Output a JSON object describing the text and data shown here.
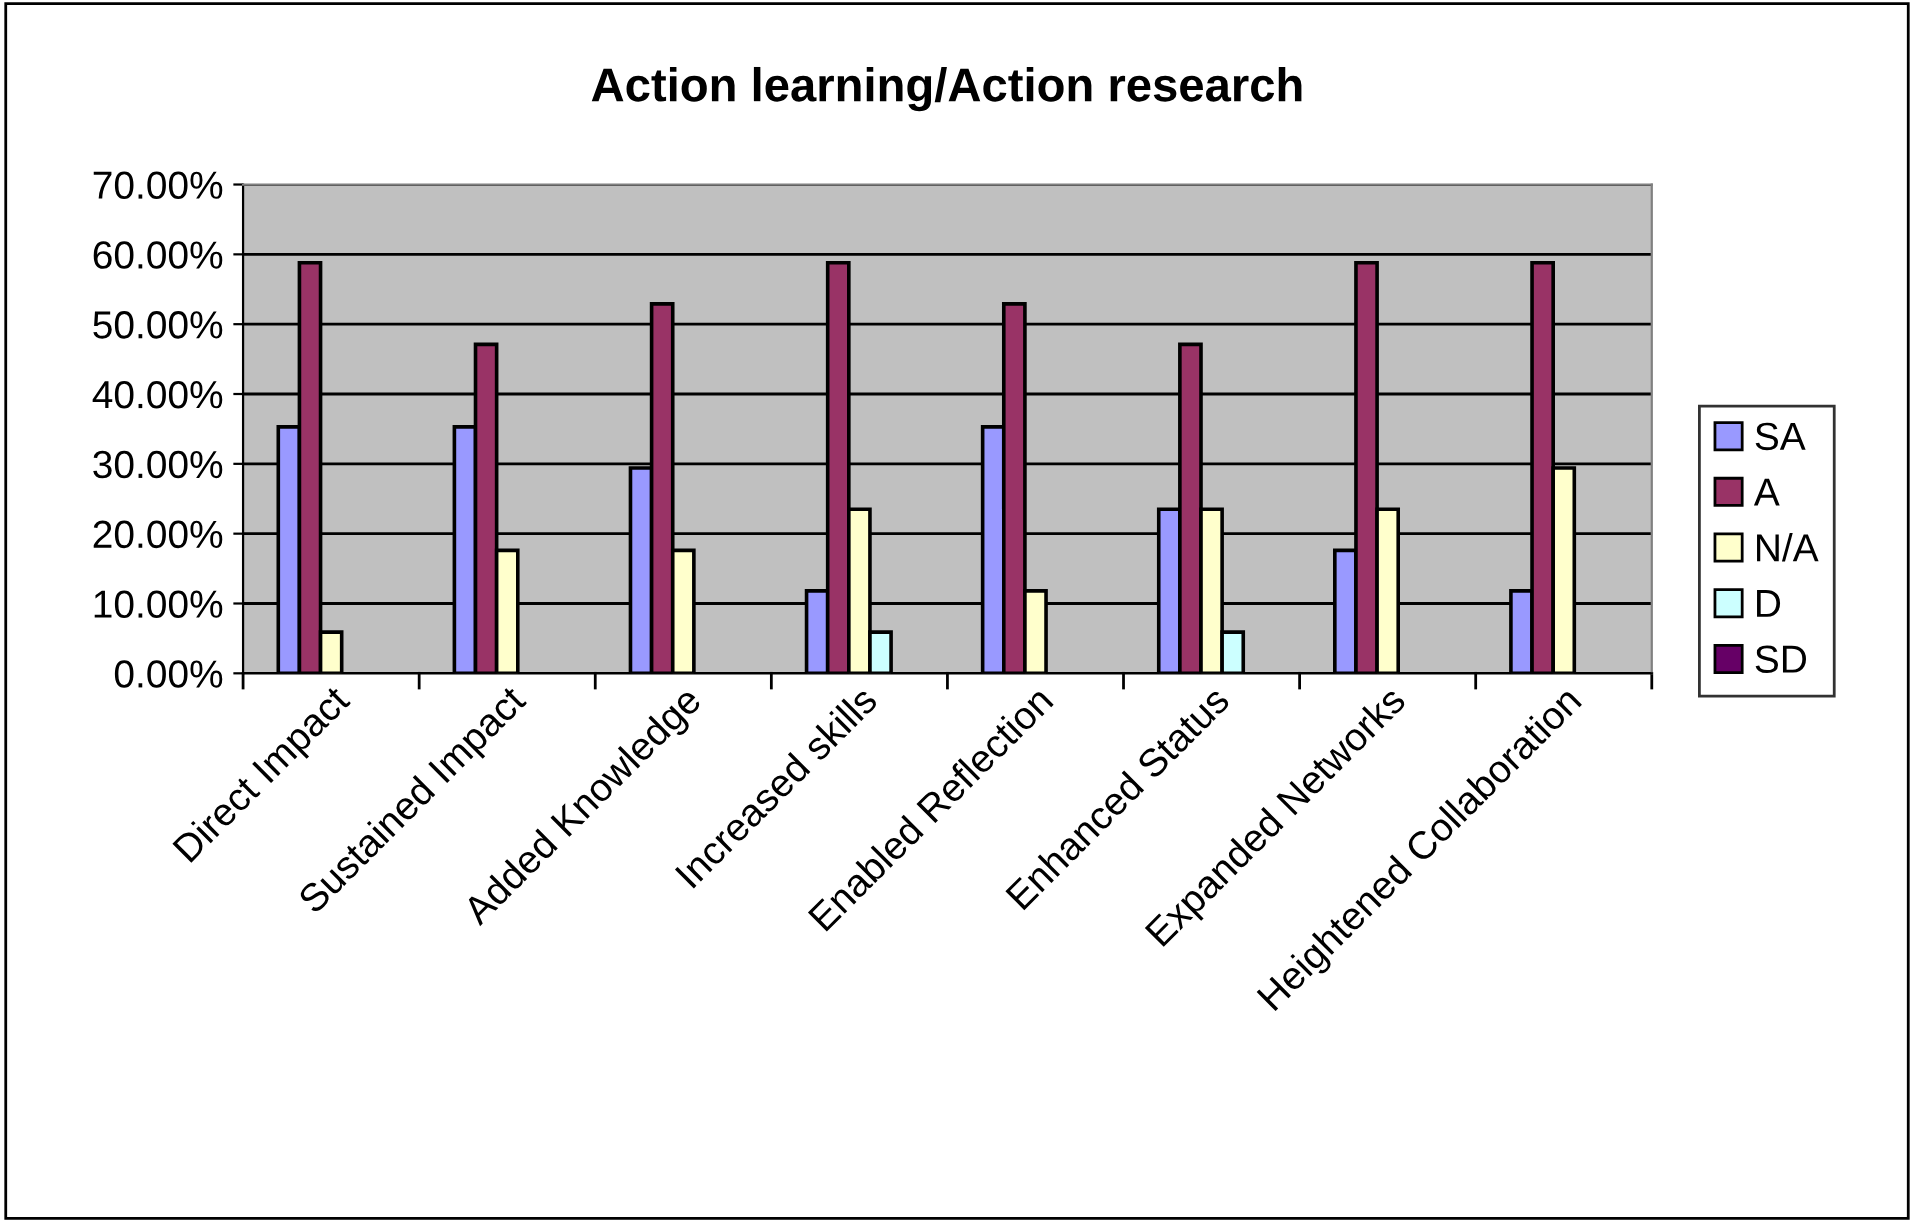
{
  "chart_data": {
    "type": "bar",
    "title": "Action learning/Action research",
    "categories": [
      "Direct Impact",
      "Sustained Impact",
      "Added Knowledge",
      "Increased skills",
      "Enabled Reflection",
      "Enhanced Status",
      "Expanded Networks",
      "Heightened Collaboration"
    ],
    "series": [
      {
        "name": "SA",
        "color": "#9999ff",
        "values": [
          35.3,
          35.3,
          29.4,
          11.8,
          35.3,
          23.5,
          17.6,
          11.8
        ]
      },
      {
        "name": "A",
        "color": "#993366",
        "values": [
          58.8,
          47.1,
          52.9,
          58.8,
          52.9,
          47.1,
          58.8,
          58.8
        ]
      },
      {
        "name": "N/A",
        "color": "#ffffcc",
        "values": [
          5.9,
          17.6,
          17.6,
          23.5,
          11.8,
          23.5,
          23.5,
          29.4
        ]
      },
      {
        "name": "D",
        "color": "#ccffff",
        "values": [
          null,
          null,
          null,
          5.9,
          null,
          5.9,
          null,
          null
        ]
      },
      {
        "name": "SD",
        "color": "#660066",
        "values": [
          null,
          null,
          null,
          null,
          null,
          null,
          null,
          null
        ]
      }
    ],
    "ylim": [
      0,
      70
    ],
    "yticks": [
      {
        "value": 0,
        "label": "0.00%"
      },
      {
        "value": 10,
        "label": "10.00%"
      },
      {
        "value": 20,
        "label": "20.00%"
      },
      {
        "value": 30,
        "label": "30.00%"
      },
      {
        "value": 40,
        "label": "40.00%"
      },
      {
        "value": 50,
        "label": "50.00%"
      },
      {
        "value": 60,
        "label": "60.00%"
      },
      {
        "value": 70,
        "label": "70.00%"
      }
    ],
    "grid": "y",
    "legend": "right"
  }
}
